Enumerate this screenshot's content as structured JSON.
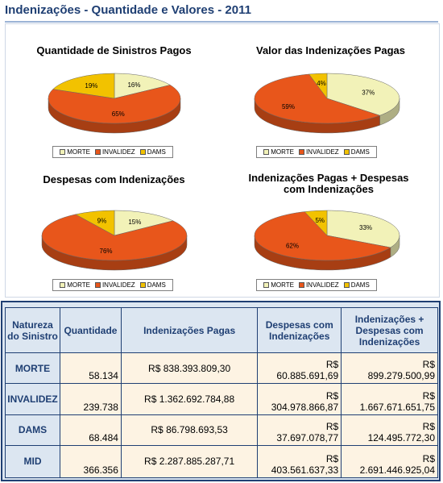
{
  "page": {
    "title": "Indenizações - Quantidade e Valores - 2011"
  },
  "colors": {
    "morte": "#f2f2b8",
    "invalidez": "#e8561b",
    "dams": "#f2c200"
  },
  "legend": [
    "MORTE",
    "INVALIDEZ",
    "DAMS"
  ],
  "chart_data": [
    {
      "type": "pie",
      "title": "Quantidade de Sinistros Pagos",
      "labels": [
        "MORTE",
        "INVALIDEZ",
        "DAMS"
      ],
      "values": [
        16,
        65,
        19
      ],
      "data_labels": [
        "16%",
        "65%",
        "19%"
      ]
    },
    {
      "type": "pie",
      "title": "Valor das Indenizações Pagas",
      "labels": [
        "MORTE",
        "INVALIDEZ",
        "DAMS"
      ],
      "values": [
        37,
        59,
        4
      ],
      "data_labels": [
        "37%",
        "59%",
        "4%"
      ]
    },
    {
      "type": "pie",
      "title": "Despesas com Indenizações",
      "labels": [
        "MORTE",
        "INVALIDEZ",
        "DAMS"
      ],
      "values": [
        15,
        76,
        9
      ],
      "data_labels": [
        "15%",
        "76%",
        "9%"
      ]
    },
    {
      "type": "pie",
      "title": "Indenizações Pagas + Despesas com Indenizações",
      "labels": [
        "MORTE",
        "INVALIDEZ",
        "DAMS"
      ],
      "values": [
        33,
        62,
        5
      ],
      "data_labels": [
        "33%",
        "62%",
        "5%"
      ]
    }
  ],
  "table": {
    "headers": [
      "Natureza do Sinistro",
      "Quantidade",
      "Indenizações Pagas",
      "Despesas com Indenizações",
      "Indenizações + Despesas com Indenizações"
    ],
    "rows": [
      {
        "label": "MORTE",
        "quantidade": "58.134",
        "indenizacoes": "R$ 838.393.809,30",
        "despesas_a": "R$",
        "despesas_b": "60.885.691,69",
        "total_a": "R$",
        "total_b": "899.279.500,99"
      },
      {
        "label": "INVALIDEZ",
        "quantidade": "239.738",
        "indenizacoes": "R$ 1.362.692.784,88",
        "despesas_a": "R$",
        "despesas_b": "304.978.866,87",
        "total_a": "R$",
        "total_b": "1.667.671.651,75"
      },
      {
        "label": "DAMS",
        "quantidade": "68.484",
        "indenizacoes": "R$ 86.798.693,53",
        "despesas_a": "R$",
        "despesas_b": "37.697.078,77",
        "total_a": "R$",
        "total_b": "124.495.772,30"
      },
      {
        "label": "MID",
        "quantidade": "366.356",
        "indenizacoes": "R$ 2.287.885.287,71",
        "despesas_a": "R$",
        "despesas_b": "403.561.637,33",
        "total_a": "R$",
        "total_b": "2.691.446.925,04"
      }
    ]
  }
}
